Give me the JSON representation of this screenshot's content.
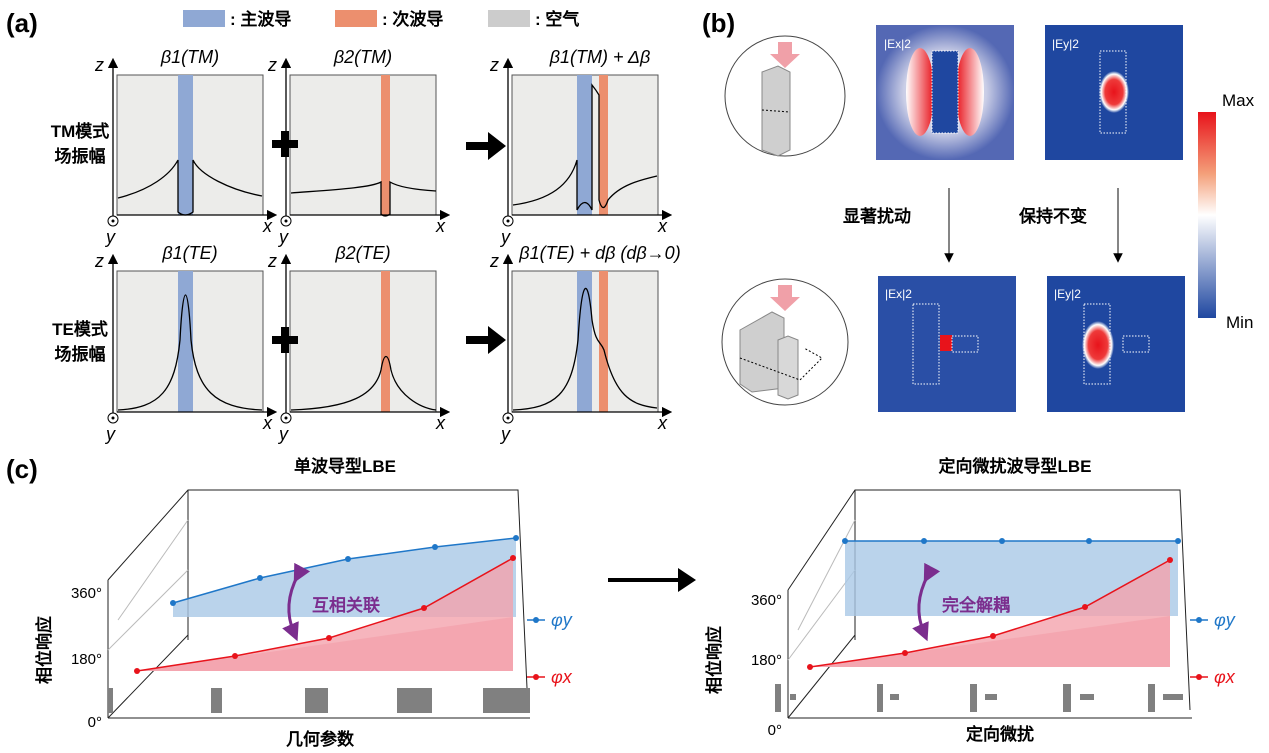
{
  "panel_a": {
    "label": "(a)",
    "legend": [
      {
        "text": ": 主波导",
        "color": "#8fa8d4"
      },
      {
        "text": ": 次波导",
        "color": "#ec8f6e"
      },
      {
        "text": ": 空气",
        "color": "#cccccc"
      }
    ],
    "rows": [
      {
        "label1": "TM模式",
        "label2": "场振幅",
        "titles": [
          "β1(TM)",
          "β2(TM)",
          "β1(TM) + Δβ"
        ]
      },
      {
        "label1": "TE模式",
        "label2": "场振幅",
        "titles": [
          "β1(TE)",
          "β2(TE)",
          "β1(TE) + dβ (dβ→0)"
        ]
      }
    ],
    "axis_z": "z",
    "axis_x": "x",
    "axis_y": "y"
  },
  "panel_b": {
    "label": "(b)",
    "maps": [
      "|Ex|2",
      "|Ey|2",
      "|Ex|2",
      "|Ey|2"
    ],
    "arrow_left": "显著扰动",
    "arrow_right": "保持不变",
    "colorbar": {
      "max": "Max",
      "min": "Min",
      "colors": [
        "#1f47a0",
        "#ffffff",
        "#e8131b"
      ]
    }
  },
  "panel_c": {
    "label": "(c)",
    "left": {
      "title": "单波导型LBE",
      "ylabel": "相位响应",
      "xlabel": "几何参数",
      "annotation": "互相关联",
      "ticks": [
        "360°",
        "180°",
        "0°"
      ],
      "legend_y": "φy",
      "legend_x": "φx"
    },
    "right": {
      "title": "定向微扰波导型LBE",
      "ylabel": "相位响应",
      "xlabel": "定向微扰",
      "annotation": "完全解耦",
      "ticks": [
        "360°",
        "180°",
        "0°"
      ],
      "legend_y": "φy",
      "legend_x": "φx"
    },
    "colors": {
      "phi_y": "#1f77c8",
      "phi_x": "#e8131b",
      "annotation": "#7b2d8e"
    }
  }
}
